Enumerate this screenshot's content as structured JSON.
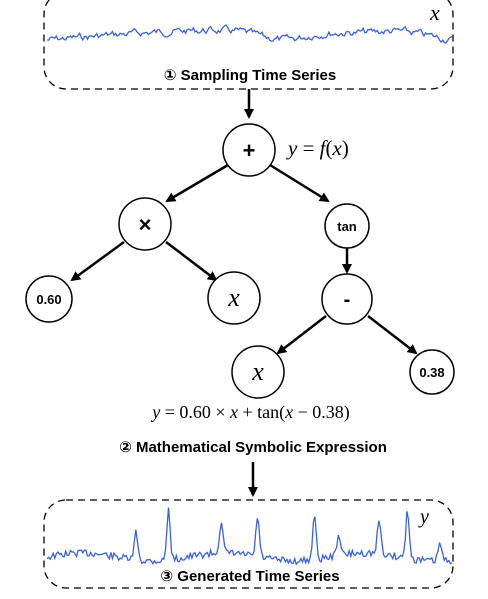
{
  "panels": {
    "input": {
      "caption": "① Sampling Time Series",
      "var": "x"
    },
    "output": {
      "caption": "③ Generated Time Series",
      "var": "y"
    }
  },
  "expression_header": {
    "lhs": "y",
    "eq": " = ",
    "fn": "f",
    "arg": "x"
  },
  "tree": {
    "root": {
      "label": "+"
    },
    "mul": {
      "label": "×"
    },
    "tan": {
      "label": "tan"
    },
    "const1": {
      "label": "0.60"
    },
    "x1": {
      "label": "x"
    },
    "sub": {
      "label": "-"
    },
    "x2": {
      "label": "x"
    },
    "const2": {
      "label": "0.38"
    }
  },
  "formula": {
    "y": "y",
    "eq": " = 0.60 × ",
    "x": "x",
    "plus": " + tan(",
    "x2": "x",
    "tail": " − 0.38)"
  },
  "expression_caption": "② Mathematical Symbolic Expression",
  "colors": {
    "series": "#3a63d8",
    "stroke": "#000000"
  }
}
